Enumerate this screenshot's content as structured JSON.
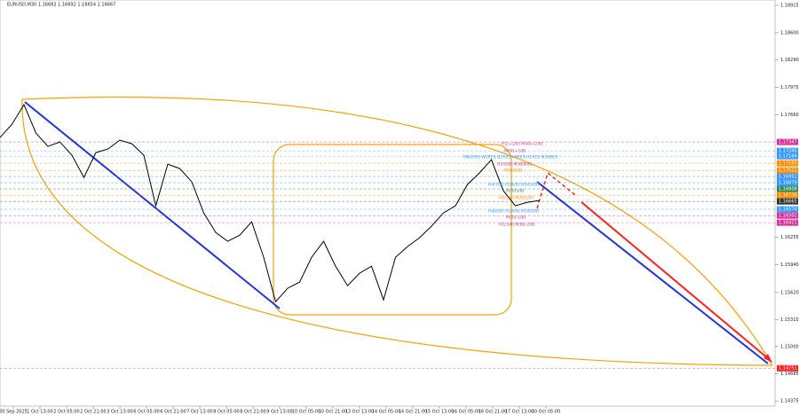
{
  "chart_data": {
    "type": "line",
    "title": "EURUSD,M30  1.16682 1.16692 1.16654 1.16667",
    "color": "#000000",
    "xlim": [
      0,
      28
    ],
    "ylim": [
      1.14316,
      1.18976
    ],
    "x": [
      0,
      0.45,
      0.9,
      1.35,
      1.8,
      2.25,
      2.7,
      3.15,
      3.6,
      4.05,
      4.5,
      4.95,
      5.4,
      5.85,
      6.3,
      6.75,
      7.2,
      7.65,
      8.1,
      8.55,
      9,
      9.45,
      9.9,
      10.35,
      10.8,
      11.25,
      11.7,
      12.15,
      12.6,
      13.05,
      13.5,
      13.95,
      14.4,
      14.85,
      15.3,
      15.75,
      16.2,
      16.65,
      17.1,
      17.55,
      18,
      18.45,
      18.9,
      19.35,
      19.8,
      20.25
    ],
    "values": [
      1.17398,
      1.17551,
      1.17775,
      1.17449,
      1.17296,
      1.17347,
      1.17195,
      1.1694,
      1.17225,
      1.17266,
      1.17368,
      1.17327,
      1.17195,
      1.16614,
      1.17093,
      1.17042,
      1.16889,
      1.16533,
      1.16309,
      1.16207,
      1.16278,
      1.16431,
      1.16024,
      1.15515,
      1.15668,
      1.15739,
      1.16024,
      1.16207,
      1.15922,
      1.15698,
      1.15841,
      1.15922,
      1.15535,
      1.16024,
      1.16146,
      1.16248,
      1.1638,
      1.16533,
      1.16614,
      1.16859,
      1.16991,
      1.17144,
      1.16787,
      1.16614,
      1.16655,
      1.16675
    ],
    "xticks": [
      {
        "value": 0.5,
        "label": "30 Sep 2025"
      },
      {
        "value": 1.5,
        "label": "1 Oct 13:00"
      },
      {
        "value": 2.5,
        "label": "2 Oct 05:00"
      },
      {
        "value": 3.5,
        "label": "2 Oct 21:00"
      },
      {
        "value": 4.5,
        "label": "3 Oct 13:00"
      },
      {
        "value": 5.5,
        "label": "6 Oct 05:00"
      },
      {
        "value": 6.5,
        "label": "6 Oct 21:00"
      },
      {
        "value": 7.5,
        "label": "7 Oct 13:00"
      },
      {
        "value": 8.5,
        "label": "8 Oct 05:00"
      },
      {
        "value": 9.5,
        "label": "8 Oct 21:00"
      },
      {
        "value": 10.5,
        "label": "9 Oct 13:00"
      },
      {
        "value": 11.5,
        "label": "10 Oct 05:00"
      },
      {
        "value": 12.5,
        "label": "10 Oct 21:00"
      },
      {
        "value": 13.5,
        "label": "13 Oct 13:00"
      },
      {
        "value": 14.5,
        "label": "14 Oct 05:00"
      },
      {
        "value": 15.5,
        "label": "14 Oct 21:00"
      },
      {
        "value": 16.5,
        "label": "15 Oct 13:00"
      },
      {
        "value": 17.5,
        "label": "16 Oct 05:00"
      },
      {
        "value": 18.5,
        "label": "16 Oct 21:00"
      },
      {
        "value": 19.5,
        "label": "17 Oct 13:00"
      },
      {
        "value": 20.5,
        "label": "20 Oct 05:00"
      }
    ],
    "yticks": [
      1.18915,
      {
        "value": 1.186,
        "label": "1.18600"
      },
      {
        "value": 1.1829,
        "label": "1.18290"
      },
      1.17975,
      {
        "value": 1.1766,
        "label": "1.17660"
      },
      1.16255,
      {
        "value": 1.1594,
        "label": "1.15940"
      },
      {
        "value": 1.1562,
        "label": "1.15620"
      },
      {
        "value": 1.1531,
        "label": "1.15310"
      },
      {
        "value": 1.15,
        "label": "1.15000"
      },
      1.14685,
      1.14375
    ],
    "levels": [
      {
        "value": 1.17347,
        "color": "#d9309a"
      },
      {
        "value": 1.17245,
        "color": "#3399ff"
      },
      {
        "value": 1.17184,
        "color": "#3399ff"
      },
      {
        "value": 1.17103,
        "color": "#ff8c00"
      },
      {
        "value": 1.17021,
        "color": "#ff8c00"
      },
      {
        "value": 1.16951,
        "color": "#3399ff"
      },
      {
        "value": 1.16879,
        "color": "#3399ff"
      },
      {
        "value": 1.16808,
        "color": "#2e8b57"
      },
      {
        "value": 1.16736,
        "color": "#ff8c00"
      },
      {
        "value": 1.16665,
        "color": "#333333"
      },
      {
        "value": 1.16574,
        "color": "#3399ff"
      },
      {
        "value": 1.16502,
        "color": "#d9309a"
      },
      {
        "value": 1.16421,
        "color": "#d9309a"
      },
      {
        "value": 1.14751,
        "color": "#ff2020"
      }
    ],
    "annotations": [
      "H1[+1/8] M30[+2/8]",
      "M30[+1/8]",
      "MN1RES W1RES D1RES H4RES H1RES M30RES",
      "H1[8/8] M30[8/8]",
      "M30[5/8]",
      "H4[7/8] H1[6/8] M30[4/8]",
      "M30[3/8]",
      "H1[5/8] M30[2/8]",
      "H4[6/8] H1[4/8] M30[0/8]",
      "M30[-1/8]",
      "H1[3/8] M30[-2/8]"
    ]
  }
}
